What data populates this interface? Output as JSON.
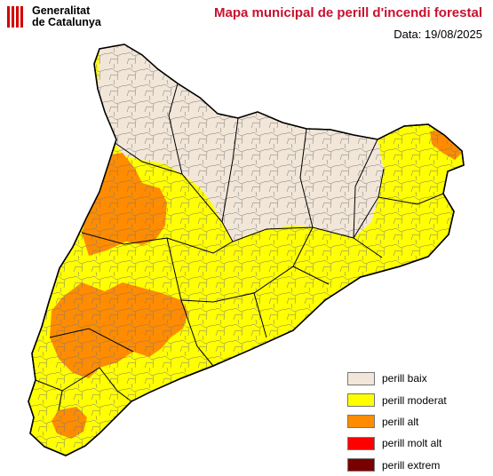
{
  "header": {
    "org_line1": "Generalitat",
    "org_line2": "de Catalunya",
    "title": "Mapa municipal de perill d'incendi forestal",
    "date": "Data: 19/08/2025"
  },
  "legend": [
    {
      "label": "perill baix",
      "color": "#f2e6d8"
    },
    {
      "label": "perill moderat",
      "color": "#ffff00"
    },
    {
      "label": "perill alt",
      "color": "#ff8c00"
    },
    {
      "label": "perill molt alt",
      "color": "#ff0000"
    },
    {
      "label": "perill extrem",
      "color": "#7a0000"
    }
  ],
  "map": {
    "regions": [
      {
        "name": "Pyrenees and interior north",
        "level": "perill baix"
      },
      {
        "name": "Coastal and central municipalities",
        "level": "perill moderat"
      },
      {
        "name": "Western Lleida plain (Segrià, Noguera)",
        "level": "perill alt"
      },
      {
        "name": "Terra Alta and Ribera d'Ebre",
        "level": "perill alt"
      },
      {
        "name": "Montsià interior",
        "level": "perill alt"
      },
      {
        "name": "Alt Empordà north-east tip",
        "level": "perill alt"
      }
    ]
  }
}
